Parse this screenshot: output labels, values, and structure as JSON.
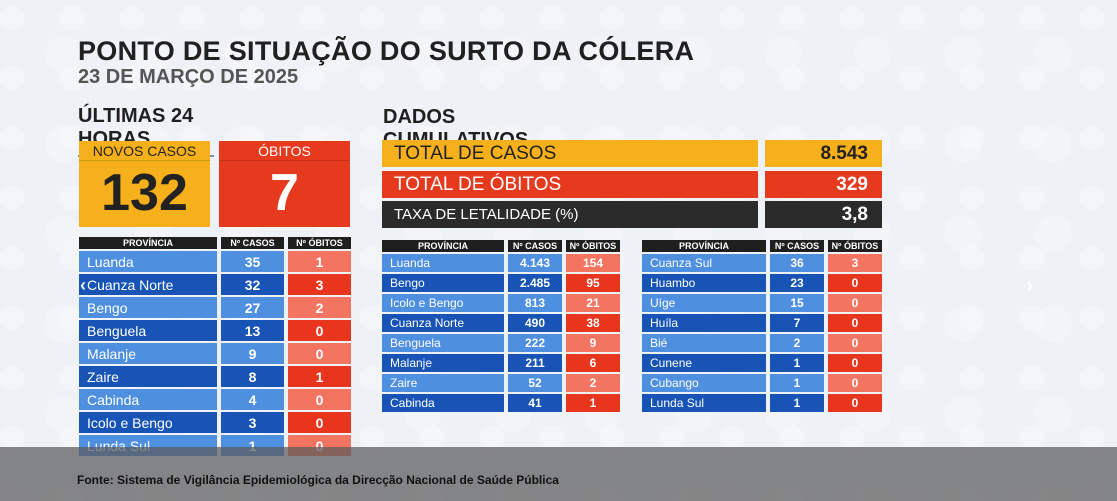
{
  "header": {
    "title": "PONTO DE SITUAÇÃO DO SURTO DA CÓLERA",
    "date": "23 DE MARÇO DE 2025"
  },
  "last24": {
    "section_title": "ÚLTIMAS 24 HORAS",
    "new_cases_label": "NOVOS CASOS",
    "new_cases_value": "132",
    "deaths_label": "ÓBITOS",
    "deaths_value": "7",
    "columns": [
      "PROVÍNCIA",
      "Nº CASOS",
      "Nº ÓBITOS"
    ],
    "rows": [
      {
        "province": "Luanda",
        "cases": "35",
        "deaths": "1"
      },
      {
        "province": "Cuanza Norte",
        "cases": "32",
        "deaths": "3"
      },
      {
        "province": "Bengo",
        "cases": "27",
        "deaths": "2"
      },
      {
        "province": "Benguela",
        "cases": "13",
        "deaths": "0"
      },
      {
        "province": "Malanje",
        "cases": "9",
        "deaths": "0"
      },
      {
        "province": "Zaire",
        "cases": "8",
        "deaths": "1"
      },
      {
        "province": "Cabinda",
        "cases": "4",
        "deaths": "0"
      },
      {
        "province": "Icolo e Bengo",
        "cases": "3",
        "deaths": "0"
      },
      {
        "province": "Lunda Sul",
        "cases": "1",
        "deaths": "0"
      }
    ]
  },
  "cumulative": {
    "section_title": "DADOS CUMULATIVOS",
    "total_cases_label": "TOTAL DE CASOS",
    "total_cases_value": "8.543",
    "total_deaths_label": "TOTAL DE ÓBITOS",
    "total_deaths_value": "329",
    "lethality_label": "TAXA DE LETALIDADE (%)",
    "lethality_value": "3,8",
    "columns": [
      "PROVÍNCIA",
      "Nº CASOS",
      "Nº ÓBITOS"
    ],
    "table1": [
      {
        "province": "Luanda",
        "cases": "4.143",
        "deaths": "154"
      },
      {
        "province": "Bengo",
        "cases": "2.485",
        "deaths": "95"
      },
      {
        "province": "Icolo e Bengo",
        "cases": "813",
        "deaths": "21"
      },
      {
        "province": "Cuanza Norte",
        "cases": "490",
        "deaths": "38"
      },
      {
        "province": "Benguela",
        "cases": "222",
        "deaths": "9"
      },
      {
        "province": "Malanje",
        "cases": "211",
        "deaths": "6"
      },
      {
        "province": "Zaire",
        "cases": "52",
        "deaths": "2"
      },
      {
        "province": "Cabinda",
        "cases": "41",
        "deaths": "1"
      }
    ],
    "table2": [
      {
        "province": "Cuanza Sul",
        "cases": "36",
        "deaths": "3"
      },
      {
        "province": "Huambo",
        "cases": "23",
        "deaths": "0"
      },
      {
        "province": "Uíge",
        "cases": "15",
        "deaths": "0"
      },
      {
        "province": "Huíla",
        "cases": "7",
        "deaths": "0"
      },
      {
        "province": "Bié",
        "cases": "2",
        "deaths": "0"
      },
      {
        "province": "Cunene",
        "cases": "1",
        "deaths": "0"
      },
      {
        "province": "Cubango",
        "cases": "1",
        "deaths": "0"
      },
      {
        "province": "Lunda Sul",
        "cases": "1",
        "deaths": "0"
      }
    ]
  },
  "nav": {
    "prev_icon": "chevron-left-icon",
    "next_icon": "chevron-right-icon"
  },
  "caption": "Fonte: Sistema de Vigilância Epidemiológica da Direcção Nacional de Saúde Pública",
  "colors": {
    "yellow": "#f5b01b",
    "red": "#e63a1e",
    "blue_light": "#4f8fe0",
    "blue_dark": "#1754b5"
  }
}
